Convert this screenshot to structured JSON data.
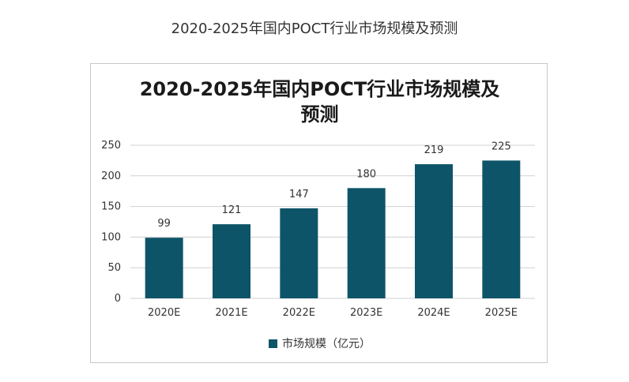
{
  "page": {
    "caption": "2020-2025年国内POCT行业市场规模及预测"
  },
  "chart_data": {
    "type": "bar",
    "title_lines": [
      "2020-2025年国内POCT行业市场规模及",
      "预测"
    ],
    "categories": [
      "2020E",
      "2021E",
      "2022E",
      "2023E",
      "2024E",
      "2025E"
    ],
    "series": [
      {
        "name": "市场规模（亿元）",
        "values": [
          99,
          121,
          147,
          180,
          219,
          225
        ],
        "color": "#0e5468"
      }
    ],
    "yticks": [
      0,
      50,
      100,
      150,
      200,
      250
    ],
    "ylim": [
      0,
      250
    ],
    "grid": true,
    "legend_position": "bottom"
  }
}
